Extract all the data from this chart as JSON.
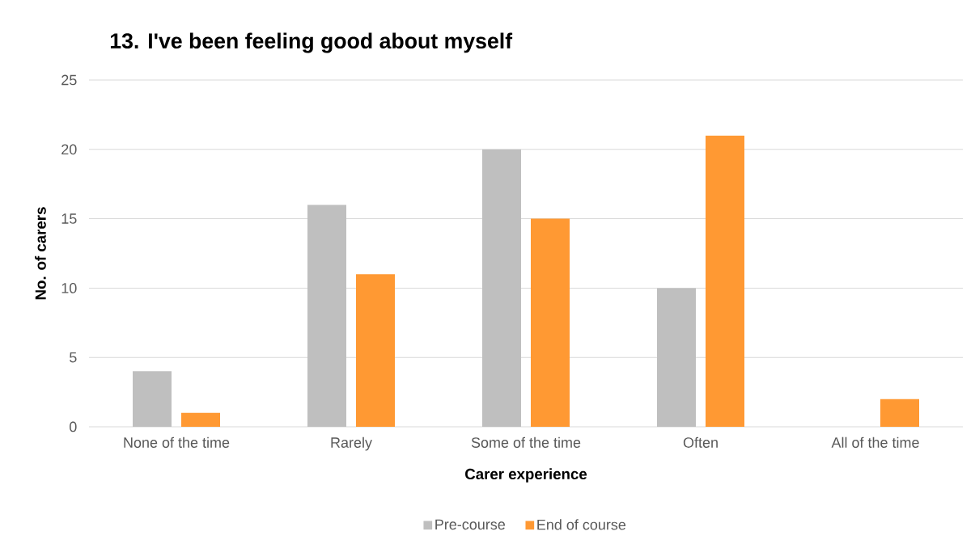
{
  "chart_data": {
    "type": "bar",
    "title": "13. I've been feeling good about myself",
    "xlabel": "Carer experience",
    "ylabel": "No. of carers",
    "categories": [
      "None of the time",
      "Rarely",
      "Some of the time",
      "Often",
      "All of the time"
    ],
    "series": [
      {
        "name": "Pre-course",
        "color": "#bfbfbf",
        "values": [
          4,
          16,
          20,
          10,
          0
        ]
      },
      {
        "name": "End of course",
        "color": "#ff9933",
        "values": [
          1,
          11,
          15,
          21,
          2
        ]
      }
    ],
    "ylim": [
      0,
      25
    ],
    "yticks": [
      0,
      5,
      10,
      15,
      20,
      25
    ],
    "grid": "y",
    "legend": "bottom"
  }
}
